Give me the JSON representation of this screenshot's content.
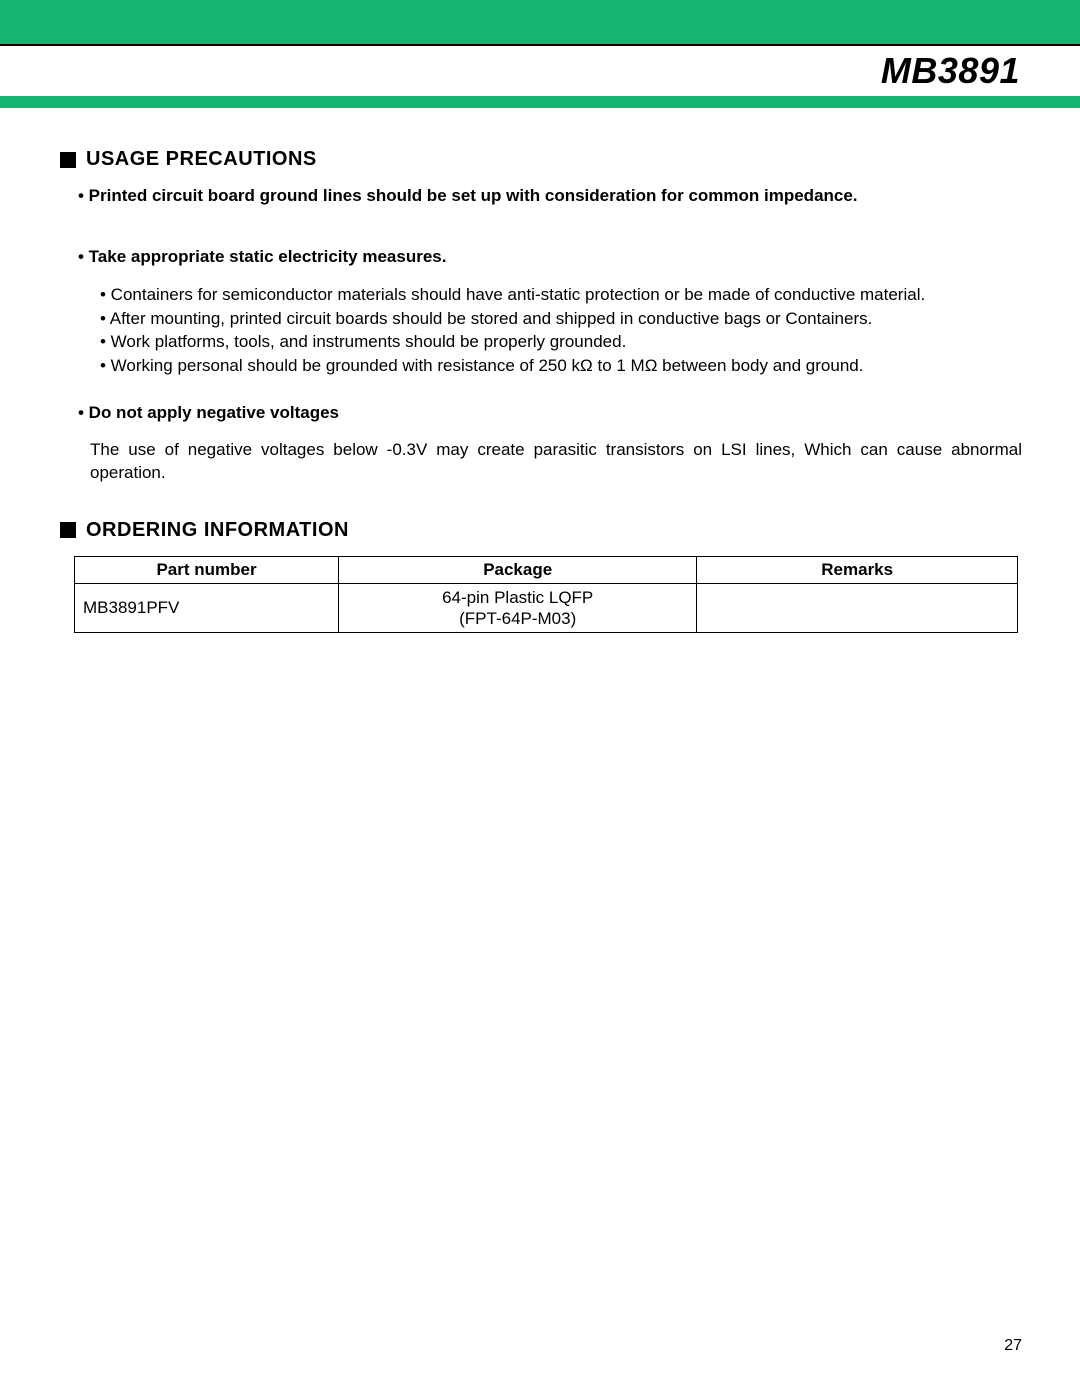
{
  "colors": {
    "brand": "#16b471",
    "text": "#000000",
    "background": "#ffffff",
    "rule": "#000000"
  },
  "header": {
    "title": "MB3891"
  },
  "sections": {
    "usage": {
      "heading": "USAGE PRECAUTIONS",
      "items": [
        {
          "lead": "• Printed circuit board ground lines should be set up with consideration for common impedance."
        },
        {
          "lead": "• Take appropriate static electricity measures.",
          "subs": [
            "• Containers for semiconductor materials should have anti-static protection or be made of conductive material.",
            "• After mounting, printed circuit boards should be stored and shipped in conductive bags or Containers.",
            "• Work platforms, tools, and instruments should be properly grounded.",
            "• Working personal should be grounded with resistance of 250 kΩ to 1 MΩ between body and ground."
          ]
        },
        {
          "lead": "• Do not apply negative voltages",
          "para": "The use of negative voltages below -0.3V may create parasitic transistors on LSI lines, Which can cause abnormal operation."
        }
      ]
    },
    "ordering": {
      "heading": "ORDERING INFORMATION",
      "columns": [
        "Part number",
        "Package",
        "Remarks"
      ],
      "rows": [
        {
          "part_number": "MB3891PFV",
          "package_line1": "64-pin Plastic LQFP",
          "package_line2": "(FPT-64P-M03)",
          "remarks": ""
        }
      ]
    }
  },
  "page_number": "27"
}
